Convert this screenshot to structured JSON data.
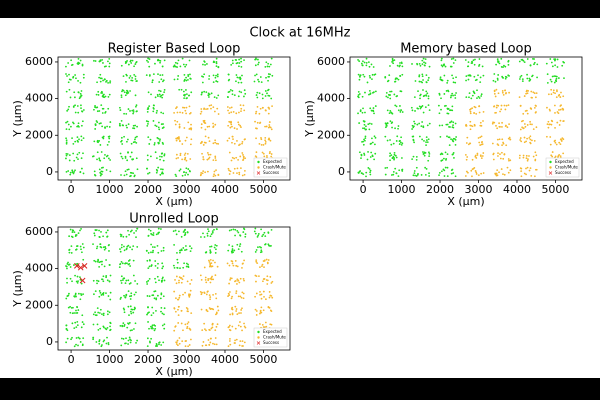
{
  "title": "Clock at 16MHz",
  "chart_data": [
    {
      "type": "scatter",
      "title": "Register Based Loop",
      "x_label": "X (μm)",
      "y_label": "Y (μm)",
      "xlim": [
        -340,
        5690
      ],
      "ylim": [
        -440,
        6270
      ],
      "xticks": [
        0,
        1000,
        2000,
        3000,
        4000,
        5000
      ],
      "yticks": [
        0,
        2000,
        4000,
        6000
      ],
      "legend": "lower right",
      "series": [
        {
          "name": "Expected",
          "color": "#22dd22",
          "marker": "cluster",
          "x": [
            100,
            800,
            1500,
            2200,
            2900,
            3600,
            4300,
            5000,
            100,
            800,
            1500,
            2200,
            2900,
            3600,
            4300,
            5000,
            100,
            800,
            1500,
            2200,
            2900,
            3600,
            4300,
            5000,
            100,
            800,
            1500,
            2200,
            100,
            800,
            1500,
            2200,
            100,
            800,
            1500,
            2200,
            100,
            800,
            1500,
            2200,
            100,
            800,
            1500,
            2200,
            2900
          ],
          "y": [
            5950,
            5950,
            5950,
            5950,
            5950,
            5950,
            5950,
            5950,
            5100,
            5100,
            5100,
            5100,
            5100,
            5100,
            5100,
            5100,
            4250,
            4250,
            4250,
            4250,
            4250,
            4250,
            4250,
            4250,
            3400,
            3400,
            3400,
            3400,
            2550,
            2550,
            2550,
            2550,
            1700,
            1700,
            1700,
            1700,
            850,
            850,
            850,
            850,
            0,
            0,
            0,
            0,
            0
          ]
        },
        {
          "name": "Crash/Mute",
          "color": "#f5b82e",
          "marker": "cluster",
          "x": [
            2900,
            3600,
            4300,
            5000,
            2900,
            3600,
            4300,
            5000,
            2900,
            3600,
            4300,
            5000,
            2900,
            3600,
            4300,
            5000,
            3600,
            4300,
            5000
          ],
          "y": [
            3400,
            3400,
            3400,
            3400,
            2550,
            2550,
            2550,
            2550,
            1700,
            1700,
            1700,
            1700,
            850,
            850,
            850,
            850,
            0,
            0,
            0
          ]
        },
        {
          "name": "Success",
          "color": "#dd2222",
          "marker": "x",
          "x": [],
          "y": []
        }
      ]
    },
    {
      "type": "scatter",
      "title": "Memory based Loop",
      "x_label": "X (μm)",
      "y_label": "Y (μm)",
      "xlim": [
        -340,
        5690
      ],
      "ylim": [
        -440,
        6270
      ],
      "xticks": [
        0,
        1000,
        2000,
        3000,
        4000,
        5000
      ],
      "yticks": [
        0,
        2000,
        4000,
        6000
      ],
      "legend": "lower right",
      "series": [
        {
          "name": "Expected",
          "color": "#22dd22",
          "marker": "cluster",
          "x": [
            100,
            800,
            1500,
            2200,
            2900,
            3600,
            4300,
            5000,
            100,
            800,
            1500,
            2200,
            2900,
            3600,
            4300,
            5000,
            100,
            800,
            1500,
            2200,
            2900,
            100,
            800,
            1500,
            2200,
            100,
            800,
            1500,
            2200,
            100,
            800,
            1500,
            2200,
            100,
            800,
            1500,
            2200,
            100,
            800,
            1500,
            2200
          ],
          "y": [
            5950,
            5950,
            5950,
            5950,
            5950,
            5950,
            5950,
            5950,
            5100,
            5100,
            5100,
            5100,
            5100,
            5100,
            5100,
            5100,
            4250,
            4250,
            4250,
            4250,
            4250,
            3400,
            3400,
            3400,
            3400,
            2550,
            2550,
            2550,
            2550,
            1700,
            1700,
            1700,
            1700,
            850,
            850,
            850,
            850,
            0,
            0,
            0,
            0
          ]
        },
        {
          "name": "Crash/Mute",
          "color": "#f5b82e",
          "marker": "cluster",
          "x": [
            3600,
            4300,
            5000,
            2900,
            3600,
            4300,
            5000,
            2900,
            3600,
            4300,
            5000,
            2900,
            3600,
            4300,
            5000,
            2900,
            3600,
            4300,
            5000,
            2900,
            3600,
            4300,
            5000
          ],
          "y": [
            4250,
            4250,
            4250,
            3400,
            3400,
            3400,
            3400,
            2550,
            2550,
            2550,
            2550,
            1700,
            1700,
            1700,
            1700,
            850,
            850,
            850,
            850,
            0,
            0,
            0,
            0
          ]
        },
        {
          "name": "Success",
          "color": "#dd2222",
          "marker": "x",
          "x": [],
          "y": []
        }
      ]
    },
    {
      "type": "scatter",
      "title": "Unrolled Loop",
      "x_label": "X (μm)",
      "y_label": "Y (μm)",
      "xlim": [
        -340,
        5690
      ],
      "ylim": [
        -440,
        6270
      ],
      "xticks": [
        0,
        1000,
        2000,
        3000,
        4000,
        5000
      ],
      "yticks": [
        0,
        2000,
        4000,
        6000
      ],
      "legend": "lower right",
      "series": [
        {
          "name": "Expected",
          "color": "#22dd22",
          "marker": "cluster",
          "x": [
            100,
            800,
            1500,
            2200,
            2900,
            3600,
            4300,
            5000,
            100,
            800,
            1500,
            2200,
            2900,
            3600,
            4300,
            5000,
            100,
            800,
            1500,
            2200,
            2900,
            100,
            800,
            1500,
            2200,
            100,
            800,
            1500,
            2200,
            100,
            800,
            1500,
            2200,
            100,
            800,
            1500,
            2200,
            100,
            800,
            1500,
            2200
          ],
          "y": [
            5950,
            5950,
            5950,
            5950,
            5950,
            5950,
            5950,
            5950,
            5100,
            5100,
            5100,
            5100,
            5100,
            5100,
            5100,
            5100,
            4250,
            4250,
            4250,
            4250,
            4250,
            3400,
            3400,
            3400,
            3400,
            2550,
            2550,
            2550,
            2550,
            1700,
            1700,
            1700,
            1700,
            850,
            850,
            850,
            850,
            0,
            0,
            0,
            0
          ]
        },
        {
          "name": "Crash/Mute",
          "color": "#f5b82e",
          "marker": "cluster",
          "x": [
            3600,
            4300,
            5000,
            2900,
            3600,
            4300,
            5000,
            2900,
            3600,
            4300,
            5000,
            2900,
            3600,
            4300,
            5000,
            2900,
            3600,
            4300,
            5000,
            2900,
            3600,
            4300,
            5000
          ],
          "y": [
            4250,
            4250,
            4250,
            3400,
            3400,
            3400,
            3400,
            2550,
            2550,
            2550,
            2550,
            1700,
            1700,
            1700,
            1700,
            850,
            850,
            850,
            850,
            0,
            0,
            0,
            0
          ]
        },
        {
          "name": "Success",
          "color": "#dd2222",
          "marker": "x",
          "x": [
            150,
            250,
            350,
            300
          ],
          "y": [
            4150,
            4050,
            4150,
            3350
          ]
        }
      ]
    }
  ]
}
